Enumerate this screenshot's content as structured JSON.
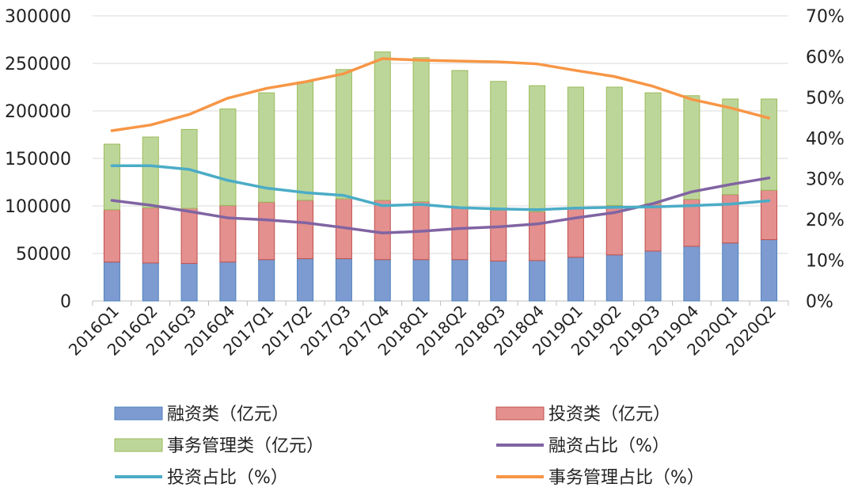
{
  "chart_data": {
    "type": "bar",
    "stacked": true,
    "categories": [
      "2016Q1",
      "2016Q2",
      "2016Q3",
      "2016Q4",
      "2017Q1",
      "2017Q2",
      "2017Q3",
      "2017Q4",
      "2018Q1",
      "2018Q2",
      "2018Q3",
      "2018Q4",
      "2019Q1",
      "2019Q2",
      "2019Q3",
      "2019Q4",
      "2020Q1",
      "2020Q2"
    ],
    "y_left": {
      "range": [
        0,
        300000
      ],
      "ticks": [
        "0",
        "50000",
        "100000",
        "150000",
        "200000",
        "250000",
        "300000"
      ]
    },
    "y_right": {
      "range": [
        0,
        70
      ],
      "ticks": [
        "0%",
        "10%",
        "20%",
        "30%",
        "40%",
        "50%",
        "60%",
        "70%"
      ]
    },
    "grid": true,
    "legend_position": "bottom",
    "bar_series": [
      {
        "name": "融资类（亿元）",
        "color": "#7d9bd0",
        "values": [
          41000,
          40000,
          39500,
          41000,
          43500,
          44500,
          44500,
          43500,
          43500,
          43500,
          42000,
          42500,
          46000,
          48500,
          52500,
          57500,
          61000,
          64500
        ]
      },
      {
        "name": "投资类（亿元）",
        "color": "#e3908f",
        "values": [
          55000,
          58000,
          58000,
          59500,
          60500,
          61500,
          63000,
          62500,
          61000,
          54500,
          53500,
          51500,
          51000,
          52000,
          50000,
          49500,
          51000,
          52000
        ]
      },
      {
        "name": "事务管理类（亿元）",
        "color": "#bcd69a",
        "values": [
          69000,
          74500,
          83000,
          101500,
          115000,
          124500,
          136000,
          156000,
          151500,
          144500,
          135500,
          132500,
          128000,
          124500,
          116500,
          109000,
          100500,
          96000
        ]
      }
    ],
    "line_series": [
      {
        "name": "融资占比（%）",
        "color": "#8064a2",
        "values": [
          24.7,
          23.5,
          22.0,
          20.4,
          19.9,
          19.2,
          18.0,
          16.7,
          17.1,
          17.8,
          18.2,
          18.9,
          20.4,
          21.7,
          23.9,
          26.8,
          28.6,
          30.2
        ]
      },
      {
        "name": "投资占比（%）",
        "color": "#4bacc6",
        "values": [
          33.2,
          33.2,
          32.3,
          29.6,
          27.7,
          26.6,
          25.9,
          23.4,
          23.7,
          22.9,
          22.6,
          22.4,
          22.8,
          23.0,
          23.1,
          23.4,
          23.8,
          24.6
        ]
      },
      {
        "name": "事务管理占比（%）",
        "color": "#f79646",
        "values": [
          41.8,
          43.2,
          45.8,
          49.8,
          52.2,
          53.8,
          55.8,
          59.5,
          59.1,
          58.9,
          58.7,
          58.2,
          56.6,
          55.1,
          52.7,
          49.5,
          47.4,
          44.9
        ]
      }
    ]
  }
}
